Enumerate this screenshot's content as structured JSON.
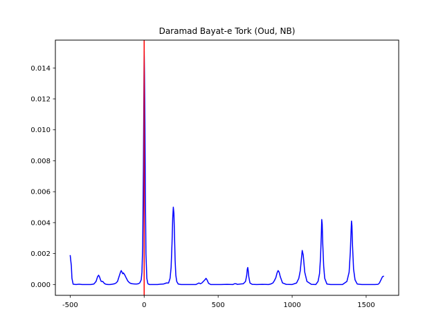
{
  "chart_data": {
    "type": "line",
    "title": "Daramad Bayat-e Tork (Oud, NB)",
    "xlabel": "",
    "ylabel": "",
    "xlim": [
      -600,
      1720
    ],
    "ylim": [
      -0.0007,
      0.0158
    ],
    "x_ticks": [
      -500,
      0,
      500,
      1000,
      1500
    ],
    "y_ticks": [
      0.0,
      0.002,
      0.004,
      0.006,
      0.008,
      0.01,
      0.012,
      0.014
    ],
    "x_tick_labels": [
      "-500",
      "0",
      "500",
      "1000",
      "1500"
    ],
    "y_tick_labels": [
      "0.000",
      "0.002",
      "0.004",
      "0.006",
      "0.008",
      "0.010",
      "0.012",
      "0.014"
    ],
    "grid": false,
    "legend": "none",
    "reference_line": {
      "x": 0,
      "color": "#ff0000"
    },
    "series": [
      {
        "color": "#0000ff",
        "x": [
          -500,
          -492,
          -488,
          -480,
          -460,
          -440,
          -420,
          -400,
          -380,
          -360,
          -340,
          -325,
          -315,
          -308,
          -302,
          -295,
          -290,
          -280,
          -270,
          -260,
          -245,
          -230,
          -215,
          -200,
          -190,
          -180,
          -170,
          -160,
          -155,
          -150,
          -145,
          -140,
          -130,
          -120,
          -110,
          -100,
          -90,
          -80,
          -70,
          -60,
          -50,
          -40,
          -30,
          -20,
          -15,
          -10,
          -5,
          -2,
          0,
          2,
          5,
          8,
          12,
          18,
          25,
          35,
          50,
          70,
          90,
          110,
          130,
          150,
          165,
          175,
          182,
          188,
          193,
          197,
          201,
          205,
          209,
          214,
          220,
          230,
          250,
          280,
          320,
          350,
          360,
          370,
          380,
          390,
          400,
          410,
          418,
          425,
          435,
          450,
          480,
          520,
          560,
          600,
          610,
          620,
          630,
          650,
          670,
          685,
          693,
          697,
          700,
          703,
          707,
          715,
          730,
          760,
          800,
          840,
          855,
          870,
          880,
          890,
          898,
          905,
          912,
          920,
          935,
          960,
          1000,
          1030,
          1045,
          1055,
          1062,
          1068,
          1075,
          1085,
          1100,
          1130,
          1160,
          1175,
          1185,
          1192,
          1197,
          1200,
          1203,
          1207,
          1213,
          1220,
          1235,
          1260,
          1300,
          1340,
          1370,
          1385,
          1393,
          1398,
          1401,
          1404,
          1408,
          1415,
          1425,
          1440,
          1470,
          1500,
          1530,
          1560,
          1580,
          1590,
          1600,
          1610,
          1620
        ],
        "y": [
          0.0019,
          0.0012,
          0.0004,
          2e-05,
          0.0,
          2e-05,
          0.0,
          0.0,
          0.0,
          0.0,
          3e-05,
          0.0002,
          0.0005,
          0.0006,
          0.0005,
          0.0003,
          0.0002,
          0.0002,
          8e-05,
          2e-05,
          0.0,
          0.0,
          2e-05,
          5e-05,
          0.0001,
          0.0002,
          0.0005,
          0.0008,
          0.0009,
          0.0008,
          0.0007,
          0.00075,
          0.0006,
          0.0004,
          0.00022,
          0.00012,
          7e-05,
          5e-05,
          4e-05,
          3e-05,
          3e-05,
          5e-05,
          0.0001,
          0.0003,
          0.0008,
          0.0025,
          0.0075,
          0.0122,
          0.0151,
          0.0136,
          0.0105,
          0.006,
          0.002,
          0.0004,
          5e-05,
          0.0,
          0.0,
          0.0,
          0.0,
          2e-05,
          3e-05,
          0.0001,
          0.0001,
          0.0004,
          0.0011,
          0.0026,
          0.0043,
          0.005,
          0.0046,
          0.0032,
          0.0016,
          0.0006,
          0.0002,
          3e-05,
          0.0,
          0.0,
          0.0,
          0.0,
          5e-05,
          0.0001,
          5e-05,
          0.0001,
          0.0002,
          0.0003,
          0.0004,
          0.0003,
          8e-05,
          0.0,
          0.0,
          0.0,
          1e-05,
          0.0,
          5e-05,
          5e-05,
          1e-05,
          3e-05,
          5e-05,
          0.0002,
          0.0006,
          0.001,
          0.0011,
          0.0009,
          0.0005,
          0.0001,
          1e-05,
          0.0,
          1e-05,
          0.0,
          3e-05,
          0.0001,
          0.00025,
          0.00045,
          0.00075,
          0.0009,
          0.0008,
          0.0005,
          0.0001,
          1e-05,
          0.0,
          0.0001,
          0.0004,
          0.0009,
          0.0016,
          0.0022,
          0.0019,
          0.0008,
          0.0002,
          1e-05,
          0.0,
          0.0002,
          0.0007,
          0.0018,
          0.0032,
          0.0042,
          0.0039,
          0.0026,
          0.0012,
          0.0004,
          3e-05,
          0.0,
          0.0,
          0.0,
          0.0002,
          0.0008,
          0.0021,
          0.0034,
          0.0041,
          0.0038,
          0.0025,
          0.001,
          0.0003,
          3e-05,
          0.0,
          0.0,
          0.0,
          0.0,
          1e-05,
          0.0001,
          0.0003,
          0.0005,
          0.00055
        ]
      }
    ]
  }
}
